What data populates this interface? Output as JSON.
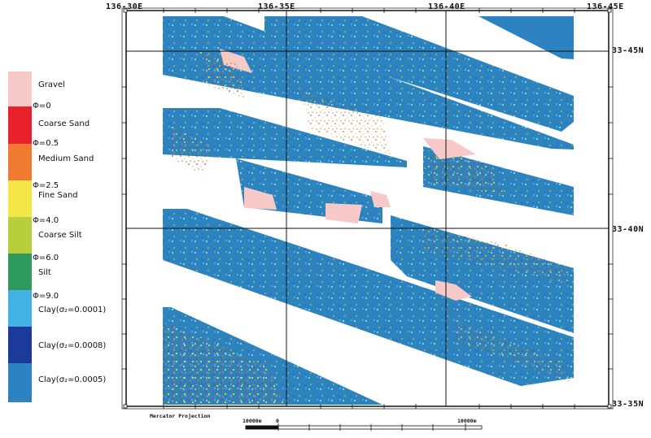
{
  "map": {
    "longitude_labels": [
      "136-30E",
      "136-35E",
      "136-40E",
      "136-45E"
    ],
    "latitude_labels": [
      "33-45N",
      "33-40N",
      "33-35N"
    ],
    "projection": "Mercator Projection",
    "scale": {
      "left_label": "10000m",
      "zero_label": "0",
      "right_label": "10000m"
    }
  },
  "legend": {
    "items": [
      {
        "label": "Gravel",
        "color": "#f7c9c9"
      },
      {
        "label": "Coarse Sand",
        "color": "#e8212a"
      },
      {
        "label": "Medium Sand",
        "color": "#f07a32"
      },
      {
        "label": "Fine Sand",
        "color": "#f3e646"
      },
      {
        "label": "Coarse Silt",
        "color": "#b8cf3c"
      },
      {
        "label": "Silt",
        "color": "#2e9a5e"
      },
      {
        "label": "Clay(σ₂=0.0001)",
        "color": "#42b2e2"
      },
      {
        "label": "Clay(σ₂=0.0008)",
        "color": "#1b3a9a"
      },
      {
        "label": "Clay(σ₂=0.0005)",
        "color": "#2d83c2"
      }
    ],
    "phi_boundaries": [
      "Φ=0",
      "Φ=0.5",
      "Φ=2.5",
      "Φ=4.0",
      "Φ=6.0",
      "Φ=9.0"
    ]
  }
}
